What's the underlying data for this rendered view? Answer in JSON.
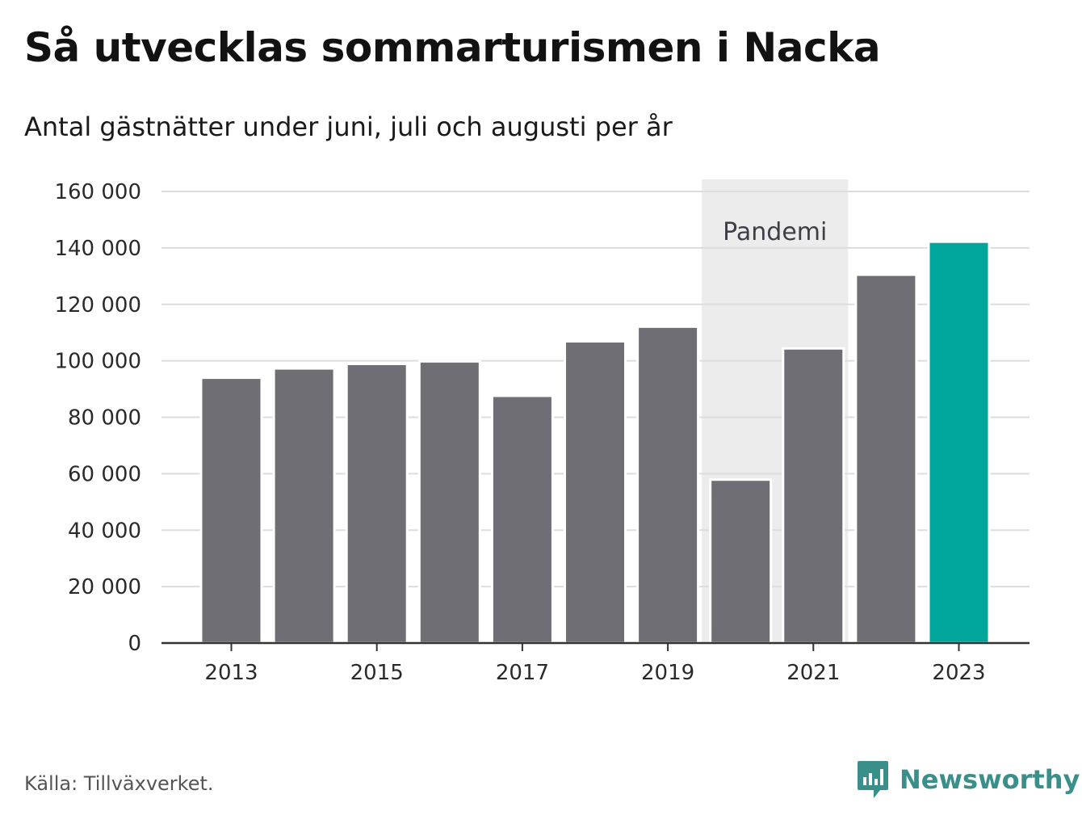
{
  "chart_data": {
    "type": "bar",
    "title": "Så utvecklas sommarturismen i Nacka",
    "subtitle": "Antal gästnätter under juni, juli och augusti per år",
    "categories": [
      "2013",
      "2014",
      "2015",
      "2016",
      "2017",
      "2018",
      "2019",
      "2020",
      "2021",
      "2022",
      "2023"
    ],
    "values": [
      94000,
      97300,
      98900,
      99800,
      87600,
      106900,
      112100,
      57900,
      104400,
      130500,
      142200
    ],
    "highlight_category": "2023",
    "x_tick_labels": [
      "2013",
      "2015",
      "2017",
      "2019",
      "2021",
      "2023"
    ],
    "y_tick_values": [
      0,
      20000,
      40000,
      60000,
      80000,
      100000,
      120000,
      140000,
      160000
    ],
    "y_tick_labels": [
      "0",
      "20 000",
      "40 000",
      "60 000",
      "80 000",
      "100 000",
      "120 000",
      "140 000",
      "160 000"
    ],
    "ylim": [
      0,
      160000
    ],
    "xlabel": "",
    "ylabel": "",
    "grid": true,
    "annotation": {
      "label": "Pandemi",
      "from": "2020",
      "to": "2021"
    },
    "colors": {
      "bar": "#6f6e75",
      "highlight": "#00a69b",
      "band": "#ececec",
      "grid": "#dddddd",
      "axis": "#333333"
    }
  },
  "footer": {
    "source": "Källa: Tillväxverket.",
    "brand": "Newsworthy"
  },
  "icons": {
    "brand_logo": "newsworthy-chart-bubble-icon"
  },
  "brand_color": "#3a8f8a"
}
